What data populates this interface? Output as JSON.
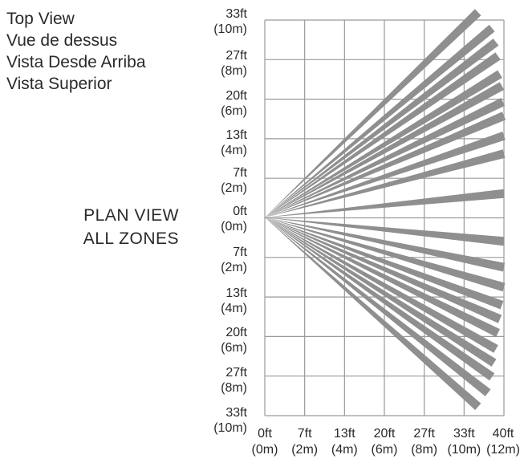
{
  "title_lines": [
    "Top View",
    "Vue de dessus",
    "Vista Desde Arriba",
    "Vista Superior"
  ],
  "plan_view": [
    "PLAN  VIEW",
    "ALL  ZONES"
  ],
  "y_ticks": [
    {
      "ft": "33ft",
      "m": "(10m)"
    },
    {
      "ft": "27ft",
      "m": "(8m)"
    },
    {
      "ft": "20ft",
      "m": "(6m)"
    },
    {
      "ft": "13ft",
      "m": "(4m)"
    },
    {
      "ft": "7ft",
      "m": "(2m)"
    },
    {
      "ft": "0ft",
      "m": "(0m)"
    },
    {
      "ft": "7ft",
      "m": "(2m)"
    },
    {
      "ft": "13ft",
      "m": "(4m)"
    },
    {
      "ft": "20ft",
      "m": "(6m)"
    },
    {
      "ft": "27ft",
      "m": "(8m)"
    },
    {
      "ft": "33ft",
      "m": "(10m)"
    }
  ],
  "x_ticks": [
    {
      "ft": "0ft",
      "m": "(0m)"
    },
    {
      "ft": "7ft",
      "m": "(2m)"
    },
    {
      "ft": "13ft",
      "m": "(4m)"
    },
    {
      "ft": "20ft",
      "m": "(6m)"
    },
    {
      "ft": "27ft",
      "m": "(8m)"
    },
    {
      "ft": "33ft",
      "m": "(10m)"
    },
    {
      "ft": "40ft",
      "m": "(12m)"
    }
  ],
  "colors": {
    "grid": "#9a9a9a",
    "beam": "#8f8f8f",
    "text": "#2a2a2a"
  },
  "beams_m": [
    {
      "x": 10.7,
      "y": 10.3
    },
    {
      "x": 11.4,
      "y": 9.5
    },
    {
      "x": 11.6,
      "y": 8.8
    },
    {
      "x": 11.7,
      "y": 8.1
    },
    {
      "x": 11.8,
      "y": 7.2
    },
    {
      "x": 11.9,
      "y": 6.6
    },
    {
      "x": 11.95,
      "y": 5.8
    },
    {
      "x": 12.0,
      "y": 5.1
    },
    {
      "x": 12.0,
      "y": 4.1
    },
    {
      "x": 12.0,
      "y": 3.2
    },
    {
      "x": 12.0,
      "y": 1.2
    },
    {
      "x": 12.0,
      "y": -1.2
    },
    {
      "x": 12.0,
      "y": -2.5
    },
    {
      "x": 12.0,
      "y": -3.5
    },
    {
      "x": 11.9,
      "y": -4.4
    },
    {
      "x": 11.8,
      "y": -5.1
    },
    {
      "x": 11.7,
      "y": -5.8
    },
    {
      "x": 11.6,
      "y": -6.6
    },
    {
      "x": 11.5,
      "y": -7.3
    },
    {
      "x": 11.4,
      "y": -8.0
    },
    {
      "x": 11.2,
      "y": -8.8
    },
    {
      "x": 10.7,
      "y": -9.5
    }
  ]
}
